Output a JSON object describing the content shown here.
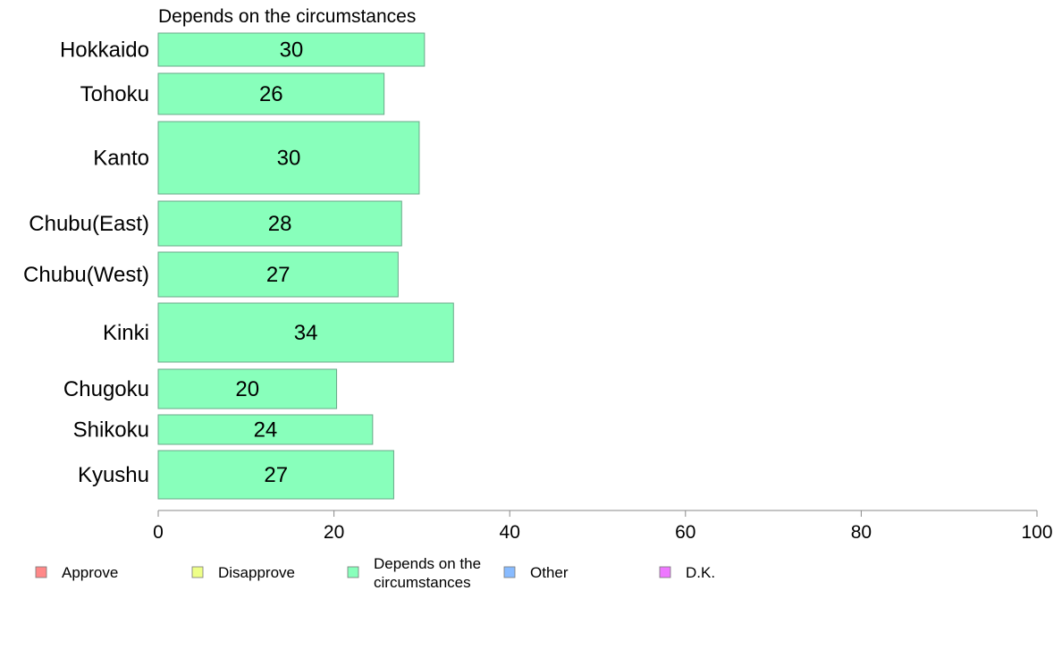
{
  "chart_data": {
    "type": "bar",
    "orientation": "horizontal",
    "title": "Depends on the circumstances",
    "categories": [
      "Hokkaido",
      "Tohoku",
      "Kanto",
      "Chubu(East)",
      "Chubu(West)",
      "Kinki",
      "Chugoku",
      "Shikoku",
      "Kyushu"
    ],
    "series": [
      {
        "name": "Depends on the circumstances",
        "values": [
          30.3,
          25.7,
          29.7,
          27.7,
          27.3,
          33.6,
          20.3,
          24.4,
          26.8
        ],
        "color": "#88ffbb"
      }
    ],
    "data_labels": [
      "30",
      "26",
      "30",
      "28",
      "27",
      "34",
      "20",
      "24",
      "27"
    ],
    "xlim": [
      0,
      100
    ],
    "xticks": [
      "0",
      "20",
      "40",
      "60",
      "80",
      "100"
    ],
    "grid": false,
    "legend_position": "bottom",
    "legend": [
      {
        "label": "Approve",
        "color": "#ff8888"
      },
      {
        "label": "Disapprove",
        "color": "#eeff88"
      },
      {
        "label": "Depends on the circumstances",
        "lines": [
          "Depends on the",
          "circumstances"
        ],
        "color": "#88ffbb"
      },
      {
        "label": "Other",
        "color": "#88bbff"
      },
      {
        "label": "D.K.",
        "color": "#ee77ff"
      }
    ]
  }
}
